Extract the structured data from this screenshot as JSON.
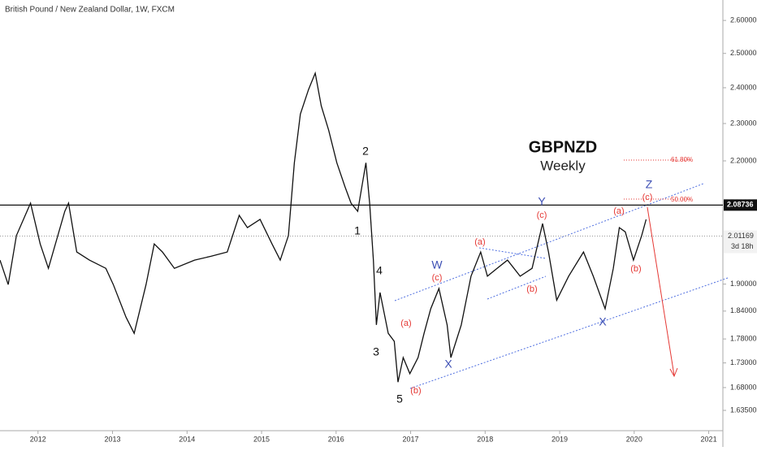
{
  "chart_data": {
    "type": "line",
    "title": "British Pound / New Zealand Dollar, 1W, FXCM",
    "symbol": "GBPNZD",
    "timeframe": "Weekly",
    "log_scale": true,
    "color": "#111111",
    "xlim": [
      2011.49,
      2021.19
    ],
    "xticks": [
      2012,
      2013,
      2014,
      2015,
      2016,
      2017,
      2018,
      2019,
      2020,
      2021
    ],
    "ylim": [
      1.596,
      2.664
    ],
    "yticks": [
      {
        "value": 1.635,
        "label": "1.63500"
      },
      {
        "value": 1.68,
        "label": "1.68000"
      },
      {
        "value": 1.73,
        "label": "1.73000"
      },
      {
        "value": 1.78,
        "label": "1.78000"
      },
      {
        "value": 1.84,
        "label": "1.84000"
      },
      {
        "value": 1.9,
        "label": "1.90000"
      },
      {
        "value": 2.2,
        "label": "2.20000"
      },
      {
        "value": 2.3,
        "label": "2.30000"
      },
      {
        "value": 2.4,
        "label": "2.40000"
      },
      {
        "value": 2.5,
        "label": "2.50000"
      },
      {
        "value": 2.6,
        "label": "2.60000"
      }
    ],
    "x": [
      2011.49,
      2011.6,
      2011.71,
      2011.9,
      2012.03,
      2012.14,
      2012.36,
      2012.41,
      2012.52,
      2012.69,
      2012.91,
      2013.01,
      2013.18,
      2013.29,
      2013.45,
      2013.56,
      2013.67,
      2013.83,
      2014.1,
      2014.32,
      2014.54,
      2014.7,
      2014.81,
      2014.98,
      2015.14,
      2015.25,
      2015.36,
      2015.44,
      2015.52,
      2015.63,
      2015.72,
      2015.8,
      2015.9,
      2016.01,
      2016.12,
      2016.2,
      2016.29,
      2016.4,
      2016.45,
      2016.5,
      2016.54,
      2016.59,
      2016.7,
      2016.78,
      2016.83,
      2016.9,
      2016.99,
      2017.1,
      2017.18,
      2017.27,
      2017.38,
      2017.49,
      2017.54,
      2017.68,
      2017.81,
      2017.94,
      2018.03,
      2018.16,
      2018.3,
      2018.47,
      2018.63,
      2018.77,
      2018.85,
      2018.96,
      2019.12,
      2019.32,
      2019.45,
      2019.61,
      2019.72,
      2019.8,
      2019.88,
      2019.99,
      2020.1,
      2020.16
    ],
    "values": [
      1.955,
      1.899,
      2.013,
      2.092,
      1.993,
      1.936,
      2.072,
      2.092,
      1.974,
      1.955,
      1.936,
      1.899,
      1.827,
      1.792,
      1.899,
      1.993,
      1.974,
      1.936,
      1.955,
      1.964,
      1.974,
      2.062,
      2.032,
      2.052,
      1.993,
      1.955,
      2.013,
      2.195,
      2.326,
      2.395,
      2.442,
      2.349,
      2.282,
      2.195,
      2.133,
      2.092,
      2.072,
      2.195,
      2.092,
      1.955,
      1.81,
      1.881,
      1.792,
      1.775,
      1.691,
      1.741,
      1.708,
      1.741,
      1.792,
      1.845,
      1.89,
      1.81,
      1.741,
      1.81,
      1.918,
      1.974,
      1.918,
      1.936,
      1.955,
      1.918,
      1.936,
      2.042,
      1.974,
      1.864,
      1.918,
      1.974,
      1.918,
      1.845,
      1.936,
      2.032,
      2.022,
      1.955,
      2.013,
      2.052
    ],
    "horizontal_level": 2.08736,
    "current_price": 2.01169,
    "countdown": "3d 18h",
    "fib_levels": [
      "61.80%",
      "50.00%"
    ],
    "wave_labels": [
      {
        "text": "2",
        "color": "#111111"
      },
      {
        "text": "1",
        "color": "#111111"
      },
      {
        "text": "4",
        "color": "#111111"
      },
      {
        "text": "3",
        "color": "#111111"
      },
      {
        "text": "5",
        "color": "#111111"
      },
      {
        "text": "(a)",
        "color": "#e53935"
      },
      {
        "text": "(b)",
        "color": "#e53935"
      },
      {
        "text": "W",
        "color": "#3f51b5"
      },
      {
        "text": "(c)",
        "color": "#e53935"
      },
      {
        "text": "X",
        "color": "#3f51b5"
      },
      {
        "text": "(a)",
        "color": "#e53935"
      },
      {
        "text": "(b)",
        "color": "#e53935"
      },
      {
        "text": "Y",
        "color": "#3f51b5"
      },
      {
        "text": "(c)",
        "color": "#e53935"
      },
      {
        "text": "X",
        "color": "#3f51b5"
      },
      {
        "text": "(a)",
        "color": "#e53935"
      },
      {
        "text": "(b)",
        "color": "#e53935"
      },
      {
        "text": "Z",
        "color": "#3f51b5"
      },
      {
        "text": "(c)",
        "color": "#e53935"
      }
    ]
  }
}
